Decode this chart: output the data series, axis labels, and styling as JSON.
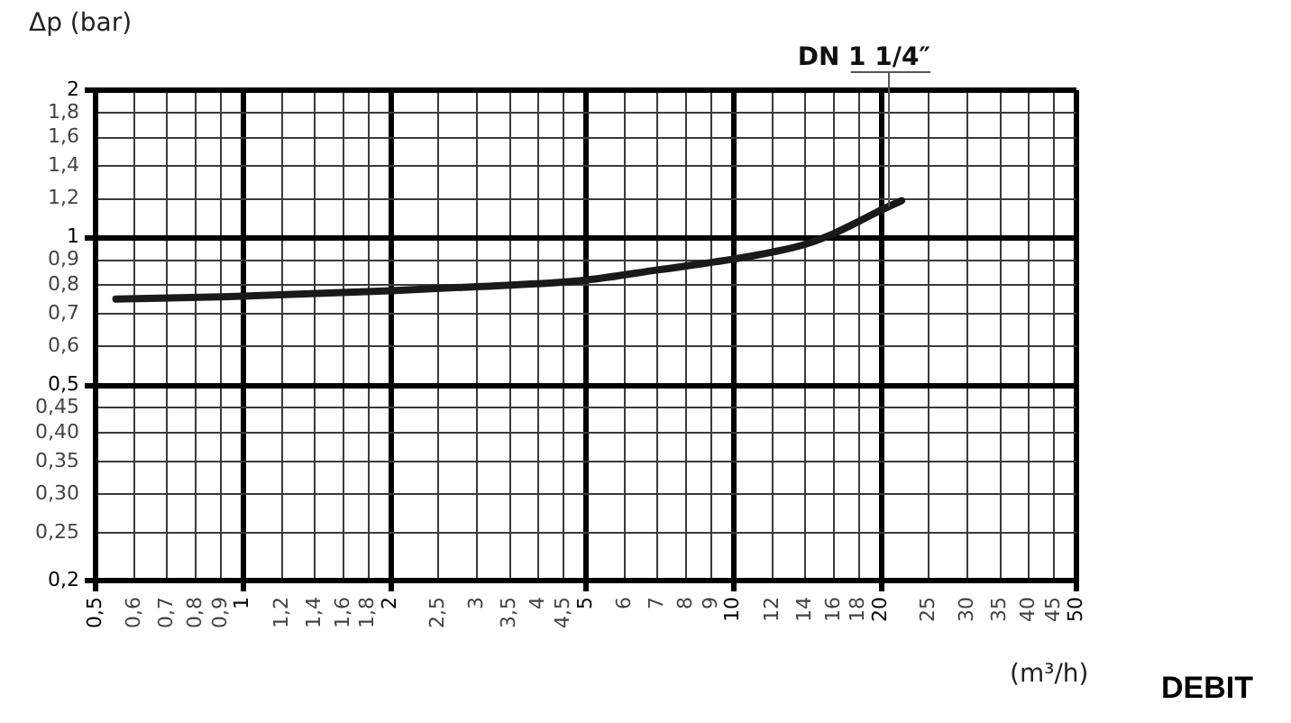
{
  "chart_data": {
    "type": "line",
    "xlabel": "(m³/h)",
    "ylabel": "Δp (bar)",
    "annotations": [
      "DEBIT"
    ],
    "log": "xy",
    "grid": true,
    "legend": false,
    "marker": "none",
    "line_style": "solid",
    "xlim": [
      0.5,
      50
    ],
    "ylim": [
      0.2,
      2
    ],
    "xticks": [
      {
        "value": 0.5,
        "label": "0,5"
      },
      {
        "value": 0.6,
        "label": "0,6"
      },
      {
        "value": 0.7,
        "label": "0,7"
      },
      {
        "value": 0.8,
        "label": "0,8"
      },
      {
        "value": 0.9,
        "label": "0,9"
      },
      1,
      {
        "value": 1.2,
        "label": "1,2"
      },
      {
        "value": 1.4,
        "label": "1,4"
      },
      {
        "value": 1.6,
        "label": "1,6"
      },
      {
        "value": 1.8,
        "label": "1,8"
      },
      2,
      {
        "value": 2.5,
        "label": "2,5"
      },
      3,
      {
        "value": 3.5,
        "label": "3,5"
      },
      4,
      {
        "value": 4.5,
        "label": "4,5"
      },
      5,
      6,
      7,
      8,
      9,
      10,
      12,
      14,
      16,
      18,
      20,
      25,
      30,
      35,
      40,
      45,
      50
    ],
    "yticks": [
      {
        "value": 0.2,
        "label": "0,2"
      },
      {
        "value": 0.25,
        "label": "0,25"
      },
      {
        "value": 0.3,
        "label": "0,30"
      },
      {
        "value": 0.35,
        "label": "0,35"
      },
      {
        "value": 0.4,
        "label": "0,40"
      },
      {
        "value": 0.45,
        "label": "0,45"
      },
      {
        "value": 0.5,
        "label": "0,5"
      },
      {
        "value": 0.6,
        "label": "0,6"
      },
      {
        "value": 0.7,
        "label": "0,7"
      },
      {
        "value": 0.8,
        "label": "0,8"
      },
      {
        "value": 0.9,
        "label": "0,9"
      },
      1,
      {
        "value": 1.2,
        "label": "1,2"
      },
      {
        "value": 1.4,
        "label": "1,4"
      },
      {
        "value": 1.6,
        "label": "1,6"
      },
      {
        "value": 1.8,
        "label": "1,8"
      },
      2
    ],
    "series": [
      {
        "name": "DN 1 1/4″",
        "color": "#1a1a1a",
        "x": [
          0.55,
          1,
          2,
          3,
          5,
          7,
          10,
          12,
          14,
          16,
          18,
          20,
          22
        ],
        "values": [
          0.75,
          0.76,
          0.78,
          0.795,
          0.82,
          0.86,
          0.905,
          0.935,
          0.97,
          1.02,
          1.08,
          1.14,
          1.19
        ]
      }
    ]
  }
}
